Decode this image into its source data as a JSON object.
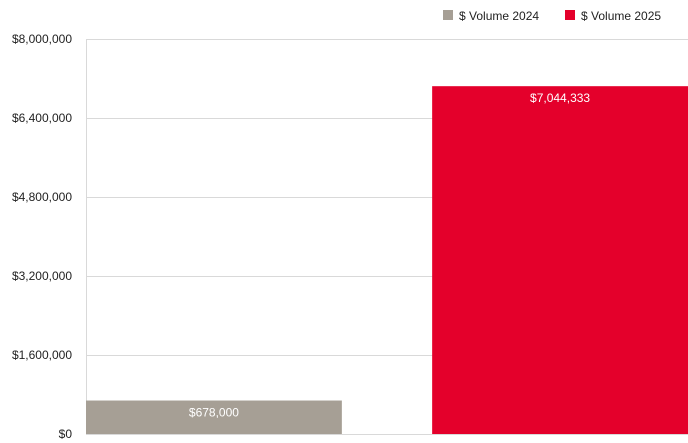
{
  "chart_data": {
    "type": "bar",
    "categories": [
      "$ Volume 2024",
      "$ Volume 2025"
    ],
    "values": [
      678000,
      7044333
    ],
    "data_labels": [
      "$678,000",
      "$7,044,333"
    ],
    "colors": [
      "#a69f95",
      "#e4002b"
    ],
    "ylim": [
      0,
      8000000
    ],
    "yticks": [
      0,
      1600000,
      3200000,
      4800000,
      6400000,
      8000000
    ],
    "ytick_labels": [
      "$0",
      "$1,600,000",
      "$3,200,000",
      "$4,800,000",
      "$6,400,000",
      "$8,000,000"
    ],
    "legend": [
      {
        "label": "$ Volume 2024",
        "color": "#a69f95"
      },
      {
        "label": "$ Volume 2025",
        "color": "#e4002b"
      }
    ],
    "legend_position": "top-right",
    "grid": true,
    "gridline_color": "#d9d9d9",
    "title": "",
    "xlabel": "",
    "ylabel": ""
  }
}
